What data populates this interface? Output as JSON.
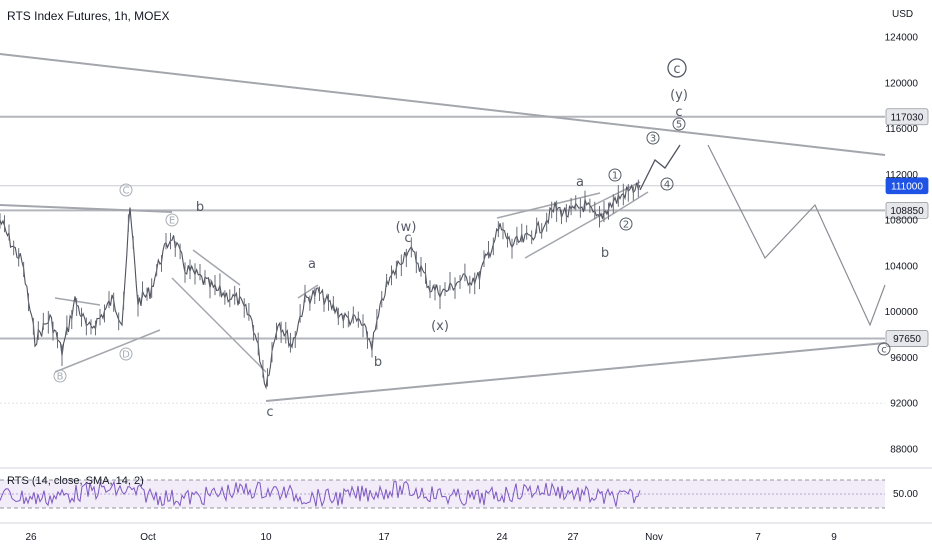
{
  "header": {
    "title": "RTS Index Futures, 1h, MOEX",
    "currency": "USD"
  },
  "rsi": {
    "label": "RTS (14, close, SMA, 14, 2)",
    "tick": "50.00"
  },
  "chart_data": {
    "type": "line",
    "price_ticks": [
      "124000",
      "120000",
      "116000",
      "112000",
      "108000",
      "104000",
      "100000",
      "96000",
      "92000",
      "88000"
    ],
    "price_tick_values": [
      124000,
      120000,
      116000,
      112000,
      108000,
      104000,
      100000,
      96000,
      92000,
      88000
    ],
    "ylim": [
      85000,
      126500
    ],
    "date_ticks": [
      "26",
      "Oct",
      "10",
      "17",
      "24",
      "27",
      "Nov",
      "7",
      "9"
    ],
    "price_lines": [
      {
        "label": "117030",
        "value": 117030,
        "highlight": false
      },
      {
        "label": "111000",
        "value": 111000,
        "highlight": true
      },
      {
        "label": "108850",
        "value": 108850,
        "highlight": false
      },
      {
        "label": "97650",
        "value": 97650,
        "highlight": false
      }
    ],
    "wave_labels": [
      {
        "text": "b",
        "kind": "plain"
      },
      {
        "text": "a",
        "kind": "plain"
      },
      {
        "text": "(w)",
        "kind": "plain"
      },
      {
        "text": "c",
        "kind": "plain"
      },
      {
        "text": "(x)",
        "kind": "plain"
      },
      {
        "text": "b",
        "kind": "plain"
      },
      {
        "text": "c",
        "kind": "plain"
      },
      {
        "text": "a",
        "kind": "plain"
      },
      {
        "text": "b",
        "kind": "plain"
      },
      {
        "text": "(y)",
        "kind": "plain"
      },
      {
        "text": "c",
        "kind": "plain"
      },
      {
        "text": "c",
        "kind": "circled-big"
      },
      {
        "text": "1",
        "kind": "circled"
      },
      {
        "text": "2",
        "kind": "circled"
      },
      {
        "text": "3",
        "kind": "circled"
      },
      {
        "text": "4",
        "kind": "circled"
      },
      {
        "text": "5",
        "kind": "circled"
      },
      {
        "text": "C",
        "kind": "circled-light"
      },
      {
        "text": "E",
        "kind": "circled-light"
      },
      {
        "text": "B",
        "kind": "circled-light"
      },
      {
        "text": "D",
        "kind": "circled-light"
      },
      {
        "text": "c",
        "kind": "circled-edge"
      }
    ]
  }
}
